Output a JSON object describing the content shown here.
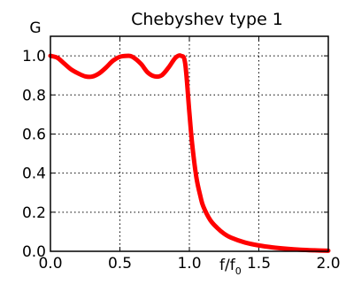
{
  "chart_data": {
    "type": "line",
    "title": "Chebyshev type 1",
    "xlabel": "f/f",
    "xlabel_subscript": "0",
    "ylabel": "G",
    "xlim": [
      0.0,
      2.0
    ],
    "ylim": [
      0.0,
      1.1
    ],
    "xticks": [
      0.0,
      0.5,
      1.0,
      1.5,
      2.0
    ],
    "xtick_labels": [
      "0.0",
      "0.5",
      "1.0",
      "1.5",
      "2.0"
    ],
    "yticks": [
      0.0,
      0.2,
      0.4,
      0.6,
      0.8,
      1.0
    ],
    "ytick_labels": [
      "0.0",
      "0.2",
      "0.4",
      "0.6",
      "0.8",
      "1.0"
    ],
    "grid": true,
    "line_color": "#ff0000",
    "series": [
      {
        "x": [
          0.0,
          0.05,
          0.1,
          0.15,
          0.2,
          0.25,
          0.3,
          0.35,
          0.4,
          0.45,
          0.5,
          0.55,
          0.59,
          0.65,
          0.7,
          0.75,
          0.8,
          0.85,
          0.9,
          0.94,
          0.97,
          1.0,
          1.02,
          1.05,
          1.08,
          1.1,
          1.15,
          1.2,
          1.25,
          1.3,
          1.4,
          1.5,
          1.6,
          1.7,
          1.8,
          1.9,
          2.0
        ],
        "y": [
          1.0,
          0.99,
          0.96,
          0.93,
          0.91,
          0.895,
          0.894,
          0.91,
          0.94,
          0.975,
          0.995,
          1.0,
          0.995,
          0.96,
          0.915,
          0.895,
          0.9,
          0.94,
          0.99,
          1.0,
          0.96,
          0.71,
          0.55,
          0.38,
          0.28,
          0.23,
          0.16,
          0.12,
          0.09,
          0.07,
          0.045,
          0.03,
          0.02,
          0.013,
          0.008,
          0.005,
          0.003
        ]
      }
    ]
  }
}
